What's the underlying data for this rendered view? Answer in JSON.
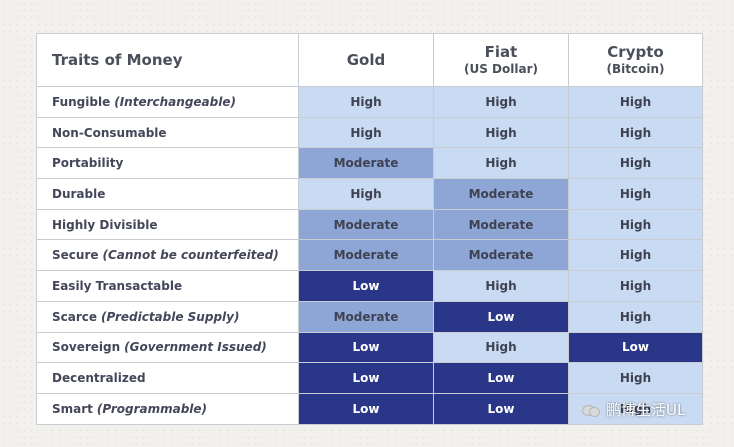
{
  "table": {
    "header": {
      "traits": "Traits of Money",
      "columns": [
        {
          "title": "Gold",
          "subtitle": ""
        },
        {
          "title": "Fiat",
          "subtitle": "(US Dollar)"
        },
        {
          "title": "Crypto",
          "subtitle": "(Bitcoin)"
        }
      ]
    },
    "rows": [
      {
        "trait": "Fungible",
        "note": "(Interchangeable)",
        "values": [
          "High",
          "High",
          "High"
        ]
      },
      {
        "trait": "Non-Consumable",
        "note": "",
        "values": [
          "High",
          "High",
          "High"
        ]
      },
      {
        "trait": "Portability",
        "note": "",
        "values": [
          "Moderate",
          "High",
          "High"
        ]
      },
      {
        "trait": "Durable",
        "note": "",
        "values": [
          "High",
          "Moderate",
          "High"
        ]
      },
      {
        "trait": "Highly Divisible",
        "note": "",
        "values": [
          "Moderate",
          "Moderate",
          "High"
        ]
      },
      {
        "trait": "Secure",
        "note": "(Cannot be counterfeited)",
        "values": [
          "Moderate",
          "Moderate",
          "High"
        ]
      },
      {
        "trait": "Easily Transactable",
        "note": "",
        "values": [
          "Low",
          "High",
          "High"
        ]
      },
      {
        "trait": "Scarce",
        "note": "(Predictable Supply)",
        "values": [
          "Moderate",
          "Low",
          "High"
        ]
      },
      {
        "trait": "Sovereign",
        "note": "(Government Issued)",
        "values": [
          "Low",
          "High",
          "Low"
        ]
      },
      {
        "trait": "Decentralized",
        "note": "",
        "values": [
          "Low",
          "Low",
          "High"
        ]
      },
      {
        "trait": "Smart",
        "note": "(Programmable)",
        "values": [
          "Low",
          "Low",
          "High"
        ]
      }
    ]
  },
  "colors": {
    "High": "#c9dbf2",
    "Moderate": "#8ea6d6",
    "Low": "#2a3688"
  },
  "watermark": {
    "icon": "wechat-icon",
    "text": "鹏博生活UL"
  }
}
